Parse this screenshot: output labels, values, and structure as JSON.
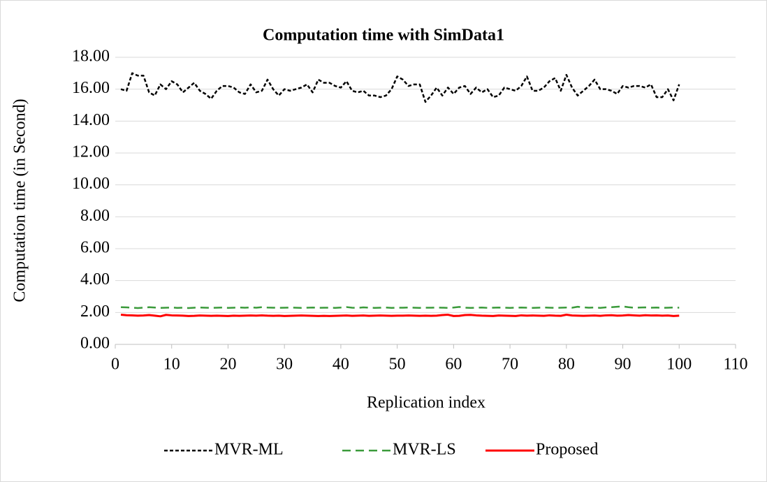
{
  "chart_data": {
    "type": "line",
    "title": "Computation time with SimData1",
    "x_label": "Replication index",
    "y_label": "Computation time (in Second)",
    "x": [
      1,
      2,
      3,
      4,
      5,
      6,
      7,
      8,
      9,
      10,
      11,
      12,
      13,
      14,
      15,
      16,
      17,
      18,
      19,
      20,
      21,
      22,
      23,
      24,
      25,
      26,
      27,
      28,
      29,
      30,
      31,
      32,
      33,
      34,
      35,
      36,
      37,
      38,
      39,
      40,
      41,
      42,
      43,
      44,
      45,
      46,
      47,
      48,
      49,
      50,
      51,
      52,
      53,
      54,
      55,
      56,
      57,
      58,
      59,
      60,
      61,
      62,
      63,
      64,
      65,
      66,
      67,
      68,
      69,
      70,
      71,
      72,
      73,
      74,
      75,
      76,
      77,
      78,
      79,
      80,
      81,
      82,
      83,
      84,
      85,
      86,
      87,
      88,
      89,
      90,
      91,
      92,
      93,
      94,
      95,
      96,
      97,
      98,
      99,
      100
    ],
    "series": [
      {
        "name": "MVR-ML",
        "color": "#000000",
        "style": "dotted",
        "values": [
          16.0,
          15.9,
          17.0,
          16.85,
          16.85,
          15.8,
          15.6,
          16.3,
          16.0,
          16.5,
          16.3,
          15.8,
          16.1,
          16.4,
          15.9,
          15.7,
          15.4,
          15.9,
          16.2,
          16.2,
          16.1,
          15.8,
          15.7,
          16.3,
          15.8,
          15.9,
          16.6,
          16.0,
          15.6,
          16.0,
          15.9,
          16.0,
          16.1,
          16.3,
          15.8,
          16.6,
          16.4,
          16.4,
          16.2,
          16.1,
          16.5,
          15.9,
          15.8,
          15.9,
          15.6,
          15.6,
          15.5,
          15.6,
          16.0,
          16.8,
          16.6,
          16.2,
          16.3,
          16.3,
          15.2,
          15.6,
          16.1,
          15.6,
          16.1,
          15.7,
          16.1,
          16.2,
          15.7,
          16.1,
          15.8,
          16.0,
          15.5,
          15.6,
          16.1,
          16.0,
          15.9,
          16.2,
          16.8,
          15.9,
          15.9,
          16.1,
          16.5,
          16.7,
          15.9,
          16.9,
          16.1,
          15.6,
          15.9,
          16.2,
          16.6,
          16.0,
          16.0,
          15.9,
          15.7,
          16.2,
          16.1,
          16.2,
          16.2,
          16.1,
          16.3,
          15.5,
          15.5,
          16.0,
          15.3,
          16.3
        ]
      },
      {
        "name": "MVR-LS",
        "color": "#3a9a3a",
        "style": "dashed",
        "values": [
          2.33,
          2.32,
          2.3,
          2.28,
          2.3,
          2.33,
          2.31,
          2.29,
          2.3,
          2.31,
          2.29,
          2.3,
          2.28,
          2.3,
          2.31,
          2.3,
          2.29,
          2.3,
          2.31,
          2.29,
          2.3,
          2.31,
          2.3,
          2.32,
          2.3,
          2.33,
          2.31,
          2.3,
          2.29,
          2.3,
          2.31,
          2.3,
          2.29,
          2.3,
          2.31,
          2.29,
          2.3,
          2.3,
          2.29,
          2.31,
          2.34,
          2.3,
          2.29,
          2.32,
          2.3,
          2.29,
          2.3,
          2.31,
          2.29,
          2.3,
          2.3,
          2.31,
          2.3,
          2.29,
          2.3,
          2.3,
          2.31,
          2.3,
          2.29,
          2.31,
          2.35,
          2.3,
          2.29,
          2.3,
          2.31,
          2.29,
          2.3,
          2.31,
          2.3,
          2.29,
          2.3,
          2.31,
          2.3,
          2.29,
          2.3,
          2.31,
          2.3,
          2.29,
          2.3,
          2.31,
          2.3,
          2.36,
          2.32,
          2.3,
          2.31,
          2.29,
          2.32,
          2.33,
          2.36,
          2.38,
          2.33,
          2.3,
          2.31,
          2.32,
          2.3,
          2.31,
          2.29,
          2.3,
          2.31,
          2.3
        ]
      },
      {
        "name": "Proposed",
        "color": "#ff0000",
        "style": "solid",
        "values": [
          1.86,
          1.83,
          1.82,
          1.8,
          1.81,
          1.84,
          1.8,
          1.76,
          1.85,
          1.82,
          1.81,
          1.8,
          1.78,
          1.79,
          1.81,
          1.8,
          1.79,
          1.8,
          1.79,
          1.78,
          1.8,
          1.79,
          1.8,
          1.81,
          1.8,
          1.82,
          1.8,
          1.79,
          1.8,
          1.78,
          1.79,
          1.8,
          1.81,
          1.8,
          1.79,
          1.78,
          1.79,
          1.78,
          1.79,
          1.8,
          1.81,
          1.79,
          1.8,
          1.81,
          1.79,
          1.8,
          1.81,
          1.8,
          1.79,
          1.8,
          1.8,
          1.81,
          1.8,
          1.79,
          1.8,
          1.79,
          1.8,
          1.84,
          1.86,
          1.78,
          1.79,
          1.84,
          1.85,
          1.82,
          1.8,
          1.79,
          1.78,
          1.81,
          1.8,
          1.79,
          1.78,
          1.82,
          1.8,
          1.81,
          1.8,
          1.79,
          1.82,
          1.8,
          1.79,
          1.86,
          1.81,
          1.8,
          1.79,
          1.8,
          1.81,
          1.79,
          1.82,
          1.83,
          1.8,
          1.81,
          1.84,
          1.82,
          1.8,
          1.83,
          1.81,
          1.82,
          1.8,
          1.81,
          1.78,
          1.8
        ]
      }
    ],
    "xlim": [
      0,
      110
    ],
    "xticks": [
      0,
      10,
      20,
      30,
      40,
      50,
      60,
      70,
      80,
      90,
      100,
      110
    ],
    "ylim": [
      0,
      18
    ],
    "yticks": [
      {
        "value": 0,
        "label": "0.00"
      },
      {
        "value": 2,
        "label": "2.00"
      },
      {
        "value": 4,
        "label": "4.00"
      },
      {
        "value": 6,
        "label": "6.00"
      },
      {
        "value": 8,
        "label": "8.00"
      },
      {
        "value": 10,
        "label": "10.00"
      },
      {
        "value": 12,
        "label": "12.00"
      },
      {
        "value": 14,
        "label": "14.00"
      },
      {
        "value": 16,
        "label": "16.00"
      },
      {
        "value": 18,
        "label": "18.00"
      }
    ],
    "grid": true,
    "legend": "bottom"
  }
}
